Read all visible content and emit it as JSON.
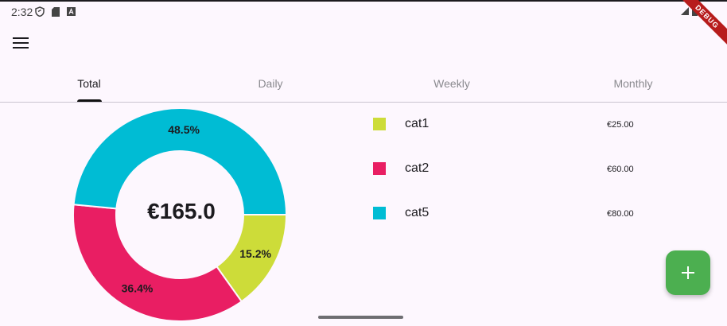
{
  "status_bar": {
    "time": "2:32",
    "icons": [
      "shield-icon",
      "sim-card-icon",
      "accessibility-badge-icon"
    ],
    "right_icons": [
      "signal-icon",
      "battery-icon"
    ]
  },
  "debug_banner": "DEBUG",
  "app_bar": {
    "menu_icon": "hamburger-menu-icon"
  },
  "tabs": [
    {
      "label": "Total",
      "active": true
    },
    {
      "label": "Daily",
      "active": false
    },
    {
      "label": "Weekly",
      "active": false
    },
    {
      "label": "Monthly",
      "active": false
    }
  ],
  "center_total": "€165.0",
  "colors": {
    "background": "#fdf7fe",
    "cat1": "#cddc39",
    "cat2": "#e91e63",
    "cat5": "#00bcd4",
    "fab": "#4caf50",
    "debug_banner": "#b71c1c"
  },
  "chart_data": {
    "type": "pie",
    "categories": [
      "cat1",
      "cat2",
      "cat5"
    ],
    "values": [
      25.0,
      60.0,
      80.0
    ],
    "percent_labels": [
      "15.2%",
      "36.4%",
      "48.5%"
    ],
    "colors": [
      "#cddc39",
      "#e91e63",
      "#00bcd4"
    ],
    "donut": true,
    "center_label": "€165.0",
    "title": ""
  },
  "legend": [
    {
      "name": "cat1",
      "amount": "€25.00",
      "color": "#cddc39"
    },
    {
      "name": "cat2",
      "amount": "€60.00",
      "color": "#e91e63"
    },
    {
      "name": "cat5",
      "amount": "€80.00",
      "color": "#00bcd4"
    }
  ],
  "fab": {
    "icon": "add-icon"
  }
}
